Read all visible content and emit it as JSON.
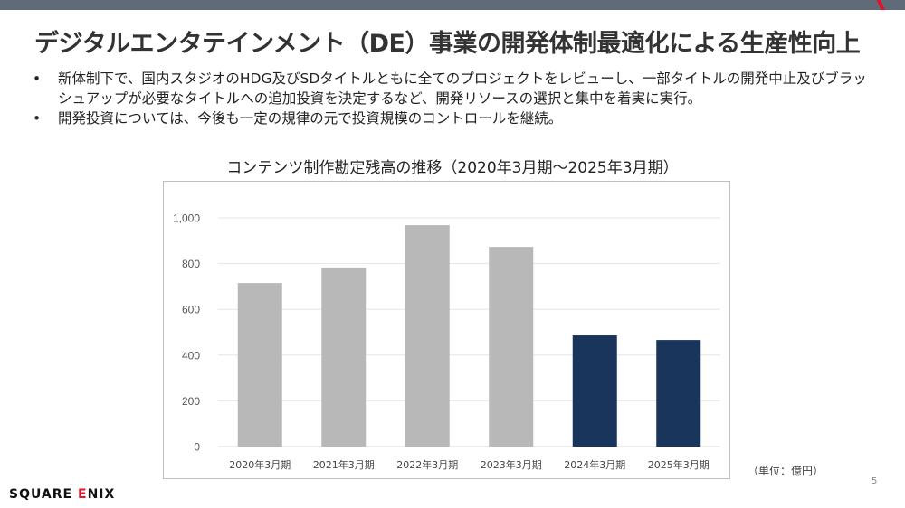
{
  "header": {
    "title": "デジタルエンタテインメント（DE）事業の開発体制最適化による生産性向上",
    "accent_color": "#e0132a",
    "bar_color": "#5f6b78"
  },
  "bullets": [
    "新体制下で、国内スタジオのHDG及びSDタイトルともに全てのプロジェクトをレビューし、一部タイトルの開発中止及びブラッシュアップが必要なタイトルへの追加投資を決定するなど、開発リソースの選択と集中を着実に実行。",
    "開発投資については、今後も一定の規律の元で投資規模のコントロールを継続。"
  ],
  "bullet_symbol": "•",
  "chart_data": {
    "type": "bar",
    "title": "コンテンツ制作勘定残高の推移（2020年3月期～2025年3月期）",
    "categories": [
      "2020年3月期",
      "2021年3月期",
      "2022年3月期",
      "2023年3月期",
      "2024年3月期",
      "2025年3月期"
    ],
    "values": [
      715,
      783,
      968,
      873,
      486,
      466
    ],
    "colors": [
      "#b8b8b8",
      "#b8b8b8",
      "#b8b8b8",
      "#b8b8b8",
      "#1a355b",
      "#1a355b"
    ],
    "xlabel": "",
    "ylabel": "",
    "ylim": [
      0,
      1000
    ],
    "yticks": [
      0,
      200,
      400,
      600,
      800,
      1000
    ],
    "ytick_labels": [
      "0",
      "200",
      "400",
      "600",
      "800",
      "1,000"
    ],
    "grid": true,
    "unit_note": "（単位：億円）"
  },
  "footer": {
    "page_number": "5",
    "logo_text_a": "SQUARE ",
    "logo_text_e": "E",
    "logo_text_b": "NIX"
  }
}
